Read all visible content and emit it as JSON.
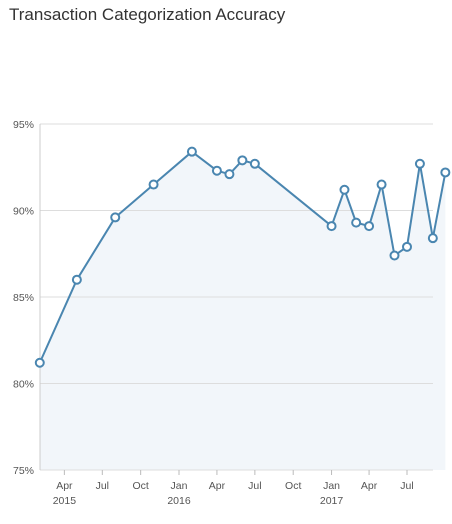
{
  "chart_data": {
    "type": "area",
    "title": "Transaction Categorization Accuracy",
    "xlabel": "",
    "ylabel": "",
    "ylim": [
      75,
      95
    ],
    "yticks": [
      95,
      90,
      85,
      80,
      75
    ],
    "ytick_labels": [
      "95%",
      "90%",
      "85%",
      "80%",
      "75%"
    ],
    "xticks": [
      {
        "date": "2015-04-01",
        "label": "Apr",
        "year": "2015"
      },
      {
        "date": "2015-07-01",
        "label": "Jul",
        "year": ""
      },
      {
        "date": "2015-10-01",
        "label": "Oct",
        "year": ""
      },
      {
        "date": "2016-01-01",
        "label": "Jan",
        "year": "2016"
      },
      {
        "date": "2016-04-01",
        "label": "Apr",
        "year": ""
      },
      {
        "date": "2016-07-01",
        "label": "Jul",
        "year": ""
      },
      {
        "date": "2016-10-01",
        "label": "Oct",
        "year": ""
      },
      {
        "date": "2017-01-01",
        "label": "Jan",
        "year": "2017"
      },
      {
        "date": "2017-04-01",
        "label": "Apr",
        "year": ""
      },
      {
        "date": "2017-07-01",
        "label": "Jul",
        "year": ""
      }
    ],
    "xlim": [
      "2015-01-01",
      "2017-09-15"
    ],
    "grid": true,
    "legend": "none",
    "colors": {
      "line": "#4a86b0",
      "fill": "#f2f6fa",
      "grid": "#dddddd",
      "marker_fill": "#ffffff"
    },
    "series": [
      {
        "points": [
          {
            "x": "2015-02-01",
            "y": 81.2
          },
          {
            "x": "2015-05-01",
            "y": 86.0
          },
          {
            "x": "2015-08-01",
            "y": 89.6
          },
          {
            "x": "2015-11-01",
            "y": 91.5
          },
          {
            "x": "2016-02-01",
            "y": 93.4
          },
          {
            "x": "2016-04-01",
            "y": 92.3
          },
          {
            "x": "2016-05-01",
            "y": 92.1
          },
          {
            "x": "2016-06-01",
            "y": 92.9
          },
          {
            "x": "2016-07-01",
            "y": 92.7
          },
          {
            "x": "2017-01-01",
            "y": 89.1
          },
          {
            "x": "2017-02-01",
            "y": 91.2
          },
          {
            "x": "2017-03-01",
            "y": 89.3
          },
          {
            "x": "2017-04-01",
            "y": 89.1
          },
          {
            "x": "2017-05-01",
            "y": 91.5
          },
          {
            "x": "2017-06-01",
            "y": 87.4
          },
          {
            "x": "2017-07-01",
            "y": 87.9
          },
          {
            "x": "2017-08-01",
            "y": 92.7
          },
          {
            "x": "2017-09-01",
            "y": 88.4
          },
          {
            "x": "2017-10-01",
            "y": 92.2
          }
        ]
      }
    ]
  }
}
